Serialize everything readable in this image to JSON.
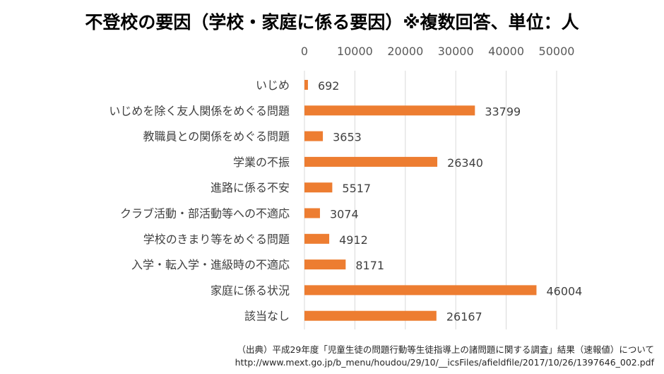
{
  "chart_data": {
    "type": "bar",
    "orientation": "horizontal",
    "title": "不登校の要因（学校・家庭に係る要因）※複数回答、単位：人",
    "categories": [
      "いじめ",
      "いじめを除く友人関係をめぐる問題",
      "教職員との関係をめぐる問題",
      "学業の不振",
      "進路に係る不安",
      "クラブ活動・部活動等への不適応",
      "学校のきまり等をめぐる問題",
      "入学・転入学・進級時の不適応",
      "家庭に係る状況",
      "該当なし"
    ],
    "values": [
      692,
      33799,
      3653,
      26340,
      5517,
      3074,
      4912,
      8171,
      46004,
      26167
    ],
    "xlim": [
      0,
      50000
    ],
    "xticks": [
      0,
      10000,
      20000,
      30000,
      40000,
      50000
    ],
    "axis_position": "top",
    "grid": true,
    "data_labels": true,
    "bar_color": "#ed7d31"
  },
  "source": {
    "line1": "（出典）平成29年度「児童生徒の問題行動等生徒指導上の諸問題に関する調査」結果（速報値）について",
    "line2": "http://www.mext.go.jp/b_menu/houdou/29/10/__icsFiles/afieldfile/2017/10/26/1397646_002.pdf"
  }
}
